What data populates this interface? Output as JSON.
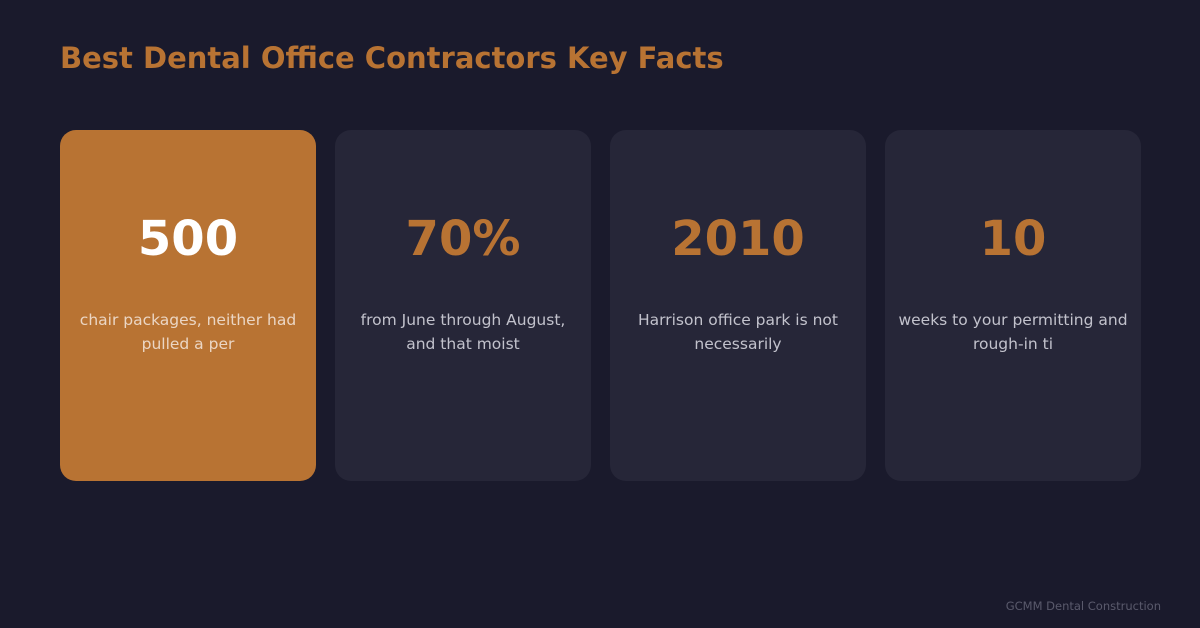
{
  "page": {
    "title": "Best Dental Office Contractors Key Facts"
  },
  "colors": {
    "background": "#1a1a2c",
    "accent": "#b87333",
    "card_background": "#262638",
    "card_text": "#c2c2cc",
    "highlight_value_text": "#ffffff"
  },
  "facts": [
    {
      "value": "500",
      "description": "chair packages, neither had pulled a per",
      "highlighted": true
    },
    {
      "value": "70%",
      "description": "from June through August, and that moist",
      "highlighted": false
    },
    {
      "value": "2010",
      "description": "Harrison office park is not necessarily",
      "highlighted": false
    },
    {
      "value": "10",
      "description": "weeks to your permitting and rough-in ti",
      "highlighted": false
    }
  ],
  "footer": {
    "brand": "GCMM Dental Construction"
  }
}
